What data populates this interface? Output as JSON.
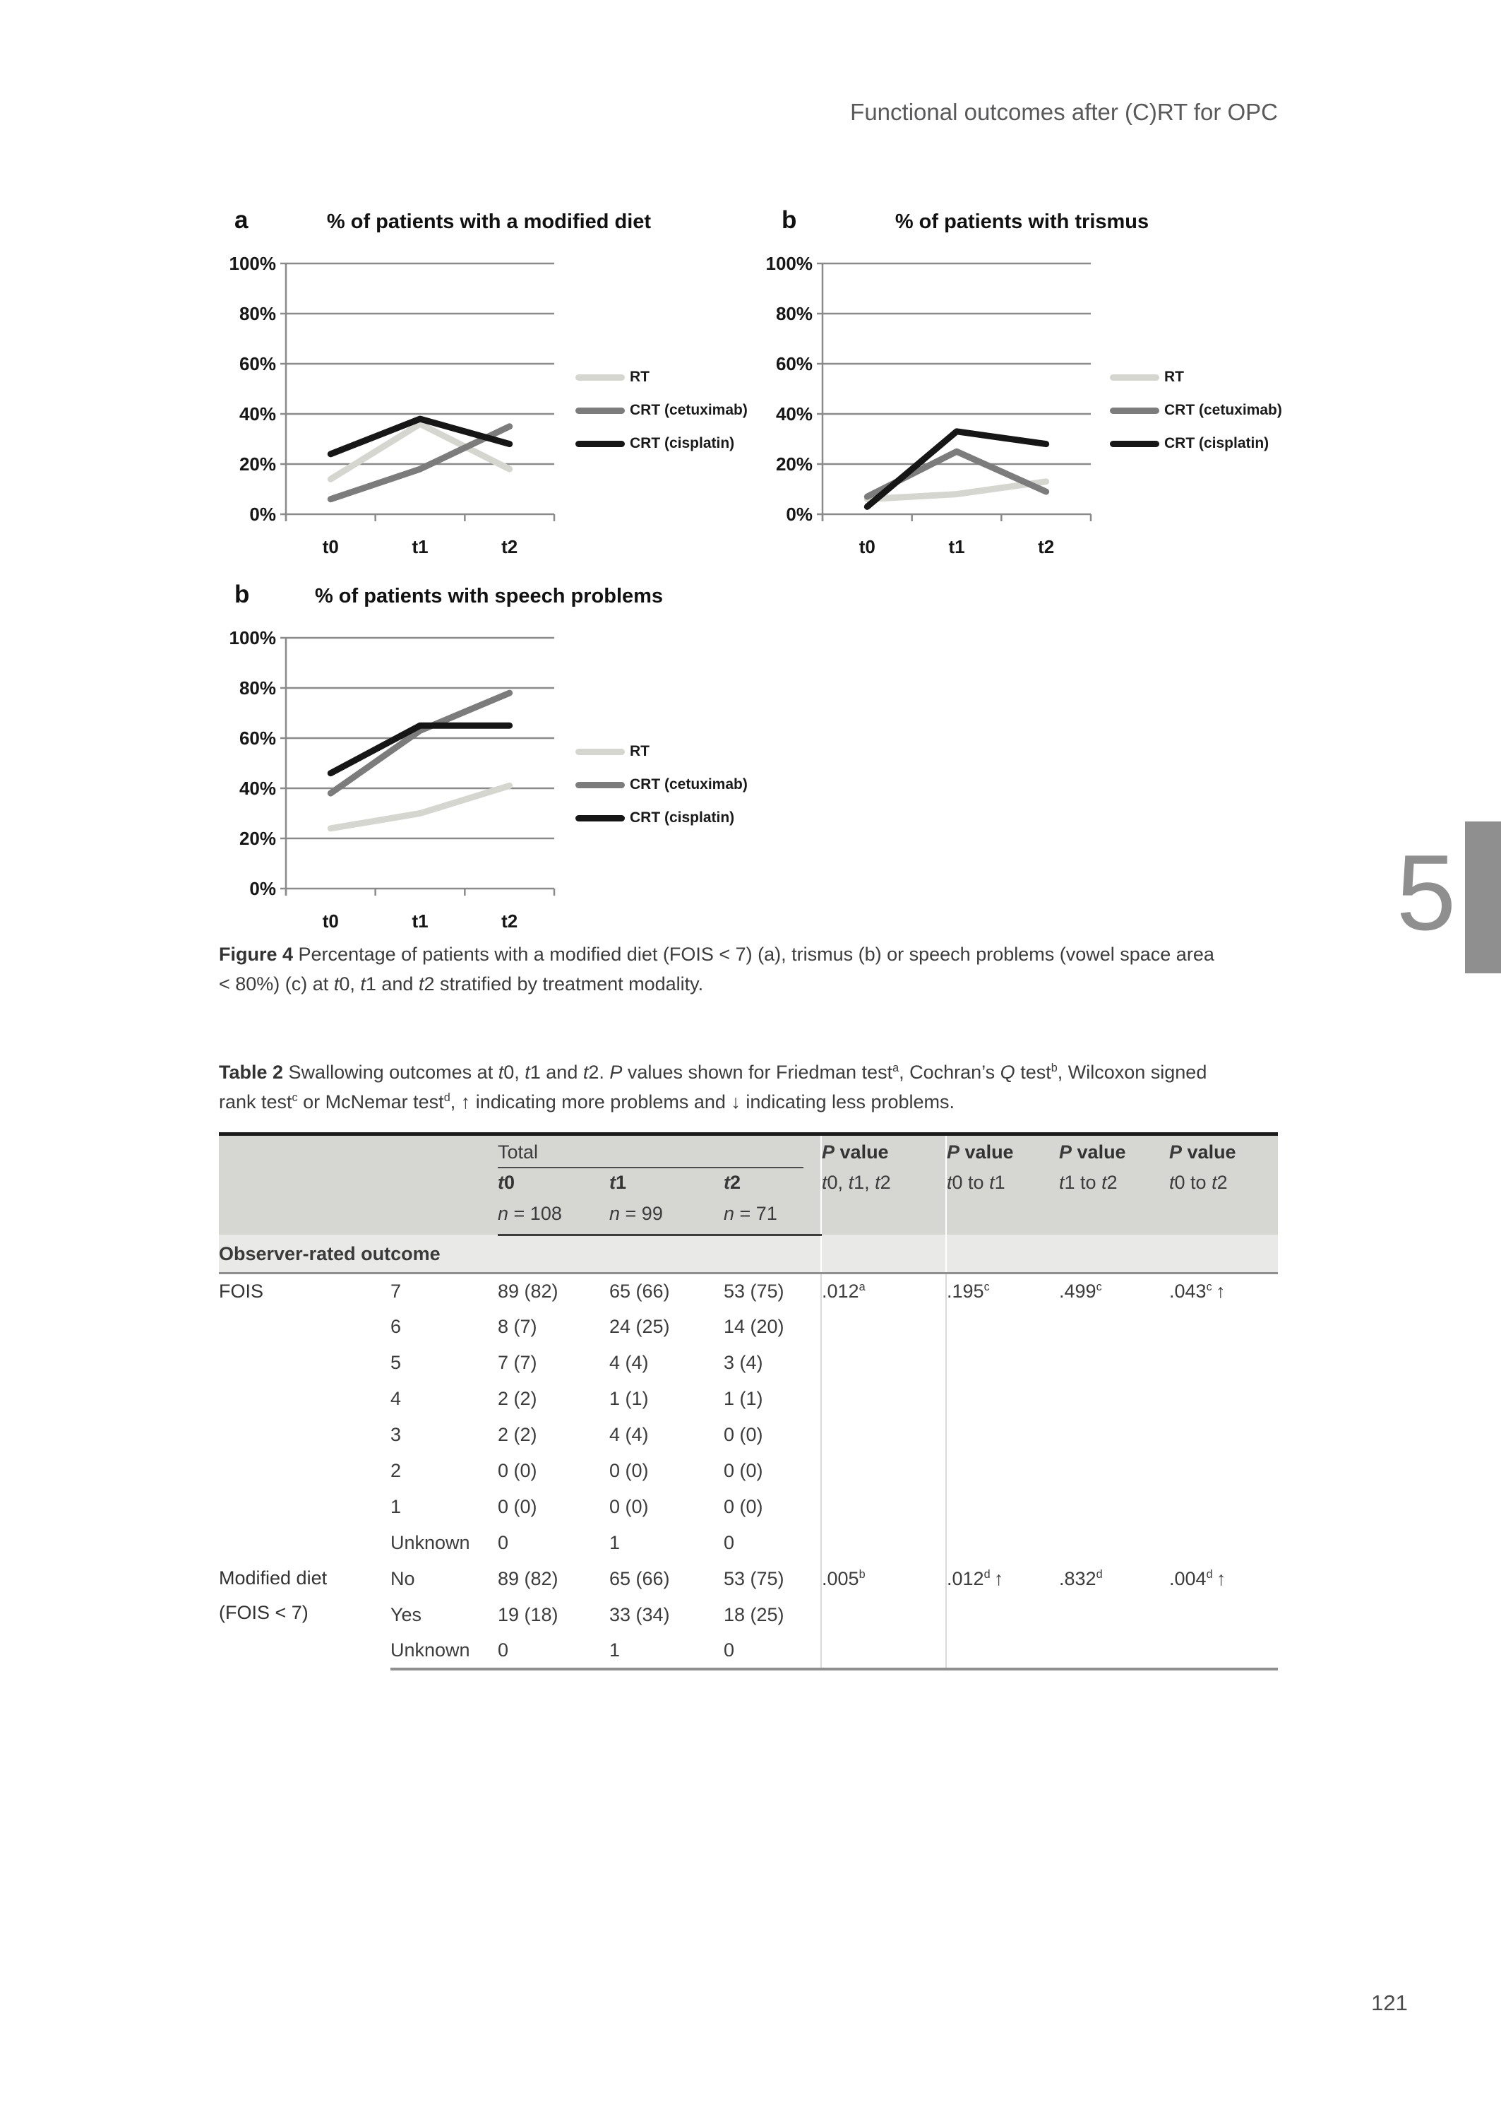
{
  "page": {
    "running_header": "Functional outcomes after (C)RT for OPC",
    "chapter_number": "5",
    "page_number": "121"
  },
  "colors": {
    "grid": "#8a8a8a",
    "axis": "#8a8a8a",
    "chapter_tab": "#8f8f8f",
    "series_rt": "#d6d6d1",
    "series_cetuximab": "#7c7c7c",
    "series_cisplatin": "#161616",
    "table_header_bg": "#d6d6d3",
    "table_section_bg": "#e9e9e7"
  },
  "chart_data": [
    {
      "type": "line",
      "panel_label": "a",
      "title": "% of patients with a modified diet",
      "categories": [
        "t0",
        "t1",
        "t2"
      ],
      "series": [
        {
          "name": "RT",
          "color": "#d6d6d1",
          "values": [
            14,
            36,
            18
          ]
        },
        {
          "name": "CRT (cetuximab)",
          "color": "#7c7c7c",
          "values": [
            6,
            18,
            35
          ]
        },
        {
          "name": "CRT (cisplatin)",
          "color": "#161616",
          "values": [
            24,
            38,
            28
          ]
        }
      ],
      "ylim": [
        0,
        100
      ],
      "yticks": [
        0,
        20,
        40,
        60,
        80,
        100
      ],
      "ytick_suffix": "%",
      "grid": true,
      "legend_position": "right"
    },
    {
      "type": "line",
      "panel_label": "b",
      "title": "% of patients with trismus",
      "categories": [
        "t0",
        "t1",
        "t2"
      ],
      "series": [
        {
          "name": "RT",
          "color": "#d6d6d1",
          "values": [
            6,
            8,
            13
          ]
        },
        {
          "name": "CRT (cetuximab)",
          "color": "#7c7c7c",
          "values": [
            7,
            25,
            9
          ]
        },
        {
          "name": "CRT (cisplatin)",
          "color": "#161616",
          "values": [
            3,
            33,
            28
          ]
        }
      ],
      "ylim": [
        0,
        100
      ],
      "yticks": [
        0,
        20,
        40,
        60,
        80,
        100
      ],
      "ytick_suffix": "%",
      "grid": true,
      "legend_position": "right"
    },
    {
      "type": "line",
      "panel_label": "b",
      "title": "% of patients with speech problems",
      "categories": [
        "t0",
        "t1",
        "t2"
      ],
      "series": [
        {
          "name": "RT",
          "color": "#d6d6d1",
          "values": [
            24,
            30,
            41
          ]
        },
        {
          "name": "CRT (cetuximab)",
          "color": "#7c7c7c",
          "values": [
            38,
            63,
            78
          ]
        },
        {
          "name": "CRT (cisplatin)",
          "color": "#161616",
          "values": [
            46,
            65,
            65
          ]
        }
      ],
      "ylim": [
        0,
        100
      ],
      "yticks": [
        0,
        20,
        40,
        60,
        80,
        100
      ],
      "ytick_suffix": "%",
      "grid": true,
      "legend_position": "right"
    }
  ],
  "figure": {
    "caption_parts": [
      {
        "t": "Figure 4",
        "s": "b"
      },
      {
        "t": " Percentage of patients with a modified diet (FOIS < 7) (a), trismus (b) or speech problems (vowel space area",
        "s": ""
      },
      {
        "t": "",
        "s": "br"
      },
      {
        "t": "< 80%) (c) at ",
        "s": ""
      },
      {
        "t": "t",
        "s": "i"
      },
      {
        "t": "0, ",
        "s": ""
      },
      {
        "t": "t",
        "s": "i"
      },
      {
        "t": "1 and ",
        "s": ""
      },
      {
        "t": "t",
        "s": "i"
      },
      {
        "t": "2 stratified by treatment modality.",
        "s": ""
      }
    ]
  },
  "table": {
    "caption_parts": [
      {
        "t": "Table 2",
        "s": "b"
      },
      {
        "t": " Swallowing outcomes at ",
        "s": ""
      },
      {
        "t": "t",
        "s": "i"
      },
      {
        "t": "0, ",
        "s": ""
      },
      {
        "t": "t",
        "s": "i"
      },
      {
        "t": "1 and ",
        "s": ""
      },
      {
        "t": "t",
        "s": "i"
      },
      {
        "t": "2. ",
        "s": ""
      },
      {
        "t": "P",
        "s": "i"
      },
      {
        "t": " values shown for Friedman test",
        "s": ""
      },
      {
        "t": "a",
        "s": "sup"
      },
      {
        "t": ", Cochran’s ",
        "s": ""
      },
      {
        "t": "Q",
        "s": "i"
      },
      {
        "t": " test",
        "s": ""
      },
      {
        "t": "b",
        "s": "sup"
      },
      {
        "t": ", Wilcoxon signed",
        "s": ""
      },
      {
        "t": "",
        "s": "br"
      },
      {
        "t": "rank test",
        "s": ""
      },
      {
        "t": "c",
        "s": "sup"
      },
      {
        "t": " or McNemar test",
        "s": ""
      },
      {
        "t": "d",
        "s": "sup"
      },
      {
        "t": ", ↑ indicating more problems and ↓ indicating less problems.",
        "s": ""
      }
    ],
    "header": {
      "total_label": "Total",
      "time_headers": [
        {
          "label": [
            {
              "t": "t",
              "s": "bi"
            },
            {
              "t": "0",
              "s": "b"
            }
          ],
          "n": [
            {
              "t": "n",
              "s": "i"
            },
            {
              "t": " = 108",
              "s": ""
            }
          ]
        },
        {
          "label": [
            {
              "t": "t",
              "s": "bi"
            },
            {
              "t": "1",
              "s": "b"
            }
          ],
          "n": [
            {
              "t": "n",
              "s": "i"
            },
            {
              "t": " = 99",
              "s": ""
            }
          ]
        },
        {
          "label": [
            {
              "t": "t",
              "s": "bi"
            },
            {
              "t": "2",
              "s": "b"
            }
          ],
          "n": [
            {
              "t": "n",
              "s": "i"
            },
            {
              "t": " = 71",
              "s": ""
            }
          ]
        }
      ],
      "p_headers": [
        {
          "label": [
            {
              "t": "P",
              "s": "bi"
            },
            {
              "t": " value",
              "s": "b"
            }
          ],
          "sub": [
            {
              "t": "t",
              "s": "i"
            },
            {
              "t": "0, ",
              "s": ""
            },
            {
              "t": "t",
              "s": "i"
            },
            {
              "t": "1, ",
              "s": ""
            },
            {
              "t": "t",
              "s": "i"
            },
            {
              "t": "2",
              "s": ""
            }
          ]
        },
        {
          "label": [
            {
              "t": "P",
              "s": "bi"
            },
            {
              "t": " value",
              "s": "b"
            }
          ],
          "sub": [
            {
              "t": "t",
              "s": "i"
            },
            {
              "t": "0 to ",
              "s": ""
            },
            {
              "t": "t",
              "s": "i"
            },
            {
              "t": "1",
              "s": ""
            }
          ]
        },
        {
          "label": [
            {
              "t": "P",
              "s": "bi"
            },
            {
              "t": " value",
              "s": "b"
            }
          ],
          "sub": [
            {
              "t": "t",
              "s": "i"
            },
            {
              "t": "1 to ",
              "s": ""
            },
            {
              "t": "t",
              "s": "i"
            },
            {
              "t": "2",
              "s": ""
            }
          ]
        },
        {
          "label": [
            {
              "t": "P",
              "s": "bi"
            },
            {
              "t": " value",
              "s": "b"
            }
          ],
          "sub": [
            {
              "t": "t",
              "s": "i"
            },
            {
              "t": "0 to ",
              "s": ""
            },
            {
              "t": "t",
              "s": "i"
            },
            {
              "t": "2",
              "s": ""
            }
          ]
        }
      ]
    },
    "section_label": "Observer-rated outcome",
    "rows": [
      {
        "outcome": [
          "FOIS"
        ],
        "span": 8,
        "sub": "7",
        "vals": [
          "89 (82)",
          "65 (66)",
          "53 (75)"
        ],
        "p": [
          {
            "v": ".012",
            "s": "a"
          },
          {
            "v": ".195",
            "s": "c"
          },
          {
            "v": ".499",
            "s": "c"
          },
          {
            "v": ".043",
            "s": "c",
            "arrow": "↑"
          }
        ]
      },
      {
        "sub": "6",
        "vals": [
          "8 (7)",
          "24 (25)",
          "14 (20)"
        ],
        "p": []
      },
      {
        "sub": "5",
        "vals": [
          "7 (7)",
          "4 (4)",
          "3 (4)"
        ],
        "p": []
      },
      {
        "sub": "4",
        "vals": [
          "2 (2)",
          "1 (1)",
          "1 (1)"
        ],
        "p": []
      },
      {
        "sub": "3",
        "vals": [
          "2 (2)",
          "4 (4)",
          "0 (0)"
        ],
        "p": []
      },
      {
        "sub": "2",
        "vals": [
          "0 (0)",
          "0 (0)",
          "0 (0)"
        ],
        "p": []
      },
      {
        "sub": "1",
        "vals": [
          "0 (0)",
          "0 (0)",
          "0 (0)"
        ],
        "p": []
      },
      {
        "sub": "Unknown",
        "vals": [
          "0",
          "1",
          "0"
        ],
        "p": []
      },
      {
        "outcome": [
          "Modified diet",
          "(FOIS < 7)"
        ],
        "span": 3,
        "sub": "No",
        "vals": [
          "89 (82)",
          "65 (66)",
          "53 (75)"
        ],
        "p": [
          {
            "v": ".005",
            "s": "b"
          },
          {
            "v": ".012",
            "s": "d",
            "arrow": "↑"
          },
          {
            "v": ".832",
            "s": "d"
          },
          {
            "v": ".004",
            "s": "d",
            "arrow": "↑"
          }
        ]
      },
      {
        "sub": "Yes",
        "vals": [
          "19 (18)",
          "33 (34)",
          "18 (25)"
        ],
        "p": []
      },
      {
        "sub": "Unknown",
        "vals": [
          "0",
          "1",
          "0"
        ],
        "p": []
      }
    ]
  }
}
